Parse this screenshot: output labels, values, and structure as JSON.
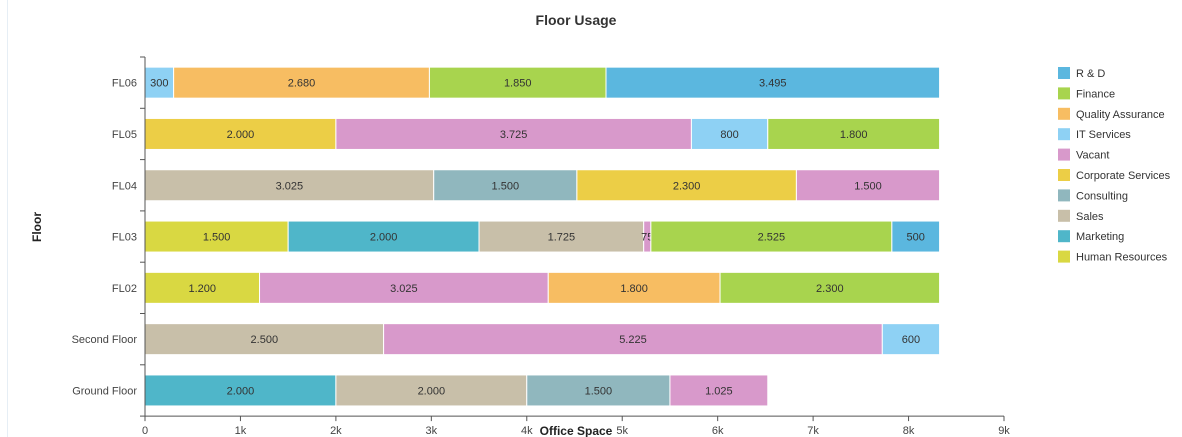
{
  "chart_data": {
    "type": "bar",
    "orientation": "horizontal",
    "stacked": true,
    "title": "Floor Usage",
    "xlabel": "Office Space",
    "ylabel": "Floor",
    "xlim": [
      0,
      9000
    ],
    "x_ticks": [
      "0",
      "1k",
      "2k",
      "3k",
      "4k",
      "5k",
      "6k",
      "7k",
      "8k",
      "9k"
    ],
    "grid": false,
    "legend_position": "right",
    "legend": [
      {
        "name": "R & D",
        "color": "#5bb7df"
      },
      {
        "name": "Finance",
        "color": "#a8d44e"
      },
      {
        "name": "Quality Assurance",
        "color": "#f7bd62"
      },
      {
        "name": "IT Services",
        "color": "#8ed1f4"
      },
      {
        "name": "Vacant",
        "color": "#d899cb"
      },
      {
        "name": "Corporate Services",
        "color": "#ecce46"
      },
      {
        "name": "Consulting",
        "color": "#90b7be"
      },
      {
        "name": "Sales",
        "color": "#c8bfa9"
      },
      {
        "name": "Marketing",
        "color": "#4fb6c9"
      },
      {
        "name": "Human Resources",
        "color": "#d9d842"
      }
    ],
    "rows": [
      {
        "category": "FL06",
        "segments": [
          {
            "series": "IT Services",
            "value": 300,
            "label": "300"
          },
          {
            "series": "Quality Assurance",
            "value": 2680,
            "label": "2.680"
          },
          {
            "series": "Finance",
            "value": 1850,
            "label": "1.850"
          },
          {
            "series": "R & D",
            "value": 3495,
            "label": "3.495"
          }
        ]
      },
      {
        "category": "FL05",
        "segments": [
          {
            "series": "Corporate Services",
            "value": 2000,
            "label": "2.000"
          },
          {
            "series": "Vacant",
            "value": 3725,
            "label": "3.725"
          },
          {
            "series": "IT Services",
            "value": 800,
            "label": "800"
          },
          {
            "series": "Finance",
            "value": 1800,
            "label": "1.800"
          }
        ]
      },
      {
        "category": "FL04",
        "segments": [
          {
            "series": "Sales",
            "value": 3025,
            "label": "3.025"
          },
          {
            "series": "Consulting",
            "value": 1500,
            "label": "1.500"
          },
          {
            "series": "Corporate Services",
            "value": 2300,
            "label": "2.300"
          },
          {
            "series": "Vacant",
            "value": 1500,
            "label": "1.500"
          }
        ]
      },
      {
        "category": "FL03",
        "segments": [
          {
            "series": "Human Resources",
            "value": 1500,
            "label": "1.500"
          },
          {
            "series": "Marketing",
            "value": 2000,
            "label": "2.000"
          },
          {
            "series": "Sales",
            "value": 1725,
            "label": "1.725"
          },
          {
            "series": "Vacant",
            "value": 75,
            "label": "75"
          },
          {
            "series": "Finance",
            "value": 2525,
            "label": "2.525"
          },
          {
            "series": "R & D",
            "value": 500,
            "label": "500"
          }
        ]
      },
      {
        "category": "FL02",
        "segments": [
          {
            "series": "Human Resources",
            "value": 1200,
            "label": "1.200"
          },
          {
            "series": "Vacant",
            "value": 3025,
            "label": "3.025"
          },
          {
            "series": "Quality Assurance",
            "value": 1800,
            "label": "1.800"
          },
          {
            "series": "Finance",
            "value": 2300,
            "label": "2.300"
          }
        ]
      },
      {
        "category": "Second Floor",
        "segments": [
          {
            "series": "Sales",
            "value": 2500,
            "label": "2.500"
          },
          {
            "series": "Vacant",
            "value": 5225,
            "label": "5.225"
          },
          {
            "series": "IT Services",
            "value": 600,
            "label": "600"
          }
        ]
      },
      {
        "category": "Ground Floor",
        "segments": [
          {
            "series": "Marketing",
            "value": 2000,
            "label": "2.000"
          },
          {
            "series": "Sales",
            "value": 2000,
            "label": "2.000"
          },
          {
            "series": "Consulting",
            "value": 1500,
            "label": "1.500"
          },
          {
            "series": "Vacant",
            "value": 1025,
            "label": "1.025"
          }
        ]
      }
    ]
  }
}
